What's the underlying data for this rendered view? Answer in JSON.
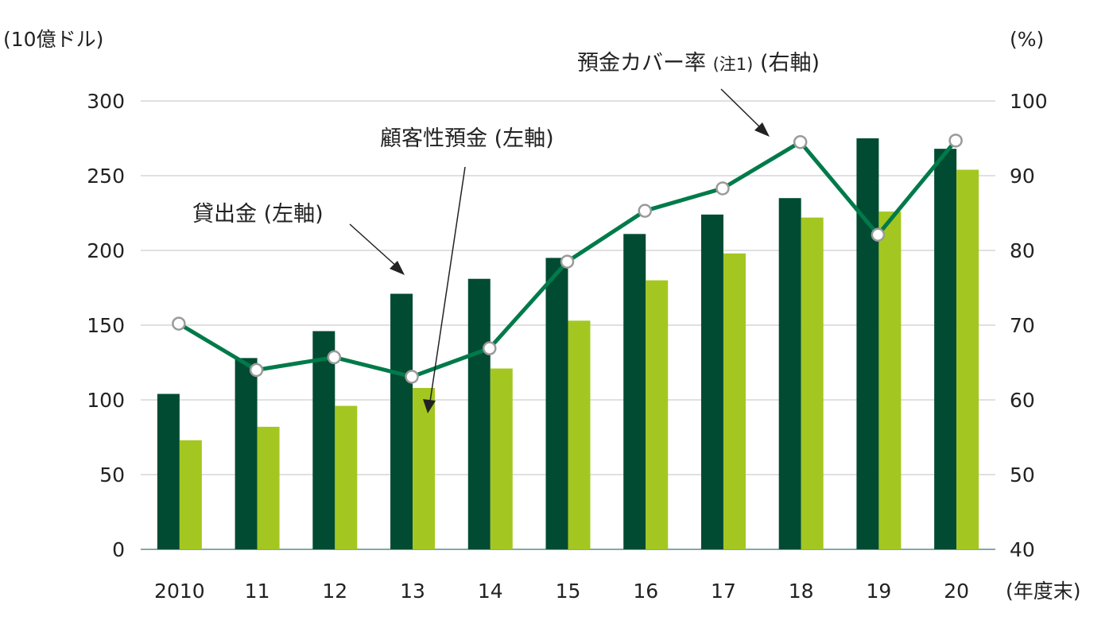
{
  "chart_data": {
    "type": "bar",
    "categories": [
      "2010",
      "11",
      "12",
      "13",
      "14",
      "15",
      "16",
      "17",
      "18",
      "19",
      "20"
    ],
    "series": [
      {
        "name": "貸出金 (左軸)",
        "type": "bar",
        "axis": "left",
        "color": "#004b32",
        "values": [
          104,
          128,
          146,
          171,
          181,
          195,
          211,
          224,
          235,
          275,
          268
        ]
      },
      {
        "name": "顧客性預金 (左軸)",
        "type": "bar",
        "axis": "left",
        "color": "#a3c720",
        "values": [
          73,
          82,
          96,
          108,
          121,
          153,
          180,
          198,
          222,
          226,
          254
        ]
      },
      {
        "name": "預金カバー率",
        "note": "(注1)",
        "axis_label": "(右軸)",
        "type": "line",
        "axis": "right",
        "color": "#007a4a",
        "values": [
          70.2,
          64.0,
          65.7,
          63.1,
          66.9,
          78.5,
          85.3,
          88.3,
          94.5,
          82.1,
          94.7
        ]
      }
    ],
    "left_axis": {
      "unit": "(10億ドル)",
      "range": [
        0,
        300
      ],
      "ticks": [
        "0",
        "50",
        "100",
        "150",
        "200",
        "250",
        "300"
      ]
    },
    "right_axis": {
      "unit": "(%)",
      "range": [
        40,
        100
      ],
      "ticks": [
        "40",
        "50",
        "60",
        "70",
        "80",
        "90",
        "100"
      ]
    },
    "x_unit": "(年度末)",
    "grid": true,
    "legend": "inline annotations with arrows"
  }
}
